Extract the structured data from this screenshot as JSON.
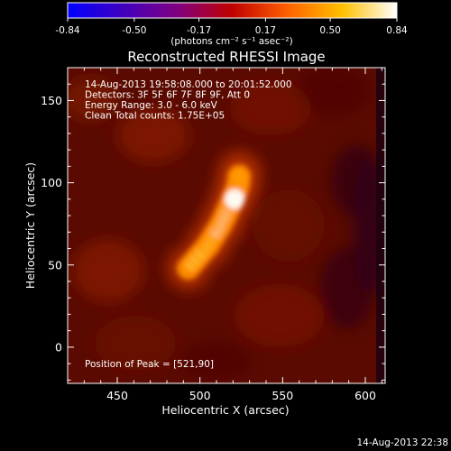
{
  "chart_data": {
    "type": "heatmap",
    "title": "Reconstructed RHESSI Image",
    "xlabel": "Heliocentric X (arcsec)",
    "ylabel": "Heliocentric Y (arcsec)",
    "xlim": [
      420,
      612
    ],
    "ylim": [
      -22,
      170
    ],
    "xticks": [
      450,
      500,
      550,
      600
    ],
    "yticks": [
      0,
      50,
      100,
      150
    ],
    "colorbar": {
      "label": "(photons cm⁻² s⁻¹ asec⁻²)",
      "ticks": [
        "-0.84",
        "-0.50",
        "-0.17",
        "0.17",
        "0.50",
        "0.84"
      ],
      "range": [
        -0.84,
        0.84
      ],
      "colormap": [
        "#0000ff",
        "#4000c0",
        "#800080",
        "#c00000",
        "#ff6000",
        "#ffc000",
        "#ffffff"
      ]
    },
    "annotations": [
      "14-Aug-2013 19:58:08.000 to 20:01:52.000",
      "Detectors: 3F 5F 6F 7F 8F 9F, Att 0",
      "Energy Range: 3.0 - 6.0 keV",
      "Clean     Total counts: 1.75E+05"
    ],
    "peak_label": "Position of Peak = [521,90]",
    "peak": [
      521,
      90
    ],
    "source": [
      {
        "x": 493,
        "y": 48,
        "intensity": 0.72
      },
      {
        "x": 505,
        "y": 62,
        "intensity": 0.76
      },
      {
        "x": 513,
        "y": 75,
        "intensity": 0.8
      },
      {
        "x": 519,
        "y": 88,
        "intensity": 0.84
      },
      {
        "x": 523,
        "y": 98,
        "intensity": 0.8
      },
      {
        "x": 524,
        "y": 106,
        "intensity": 0.66
      }
    ],
    "background": "#5a0a00"
  },
  "timestamp": "14-Aug-2013 22:38"
}
